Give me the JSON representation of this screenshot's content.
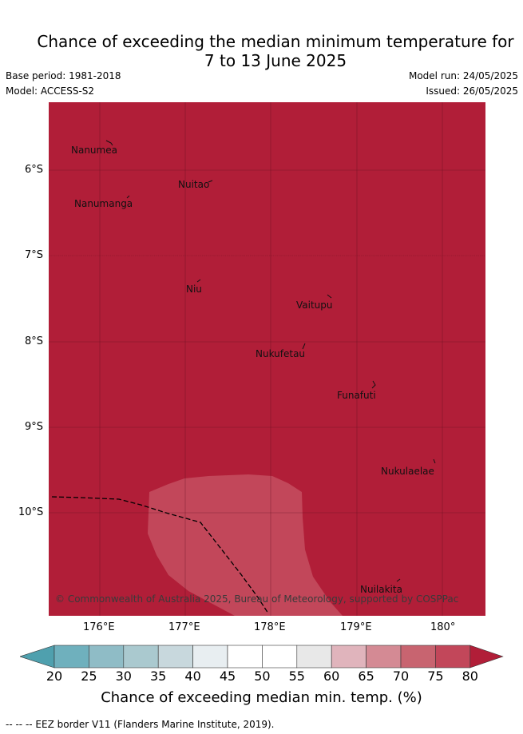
{
  "header": {
    "title_line1": "Chance of exceeding the median minimum temperature for",
    "title_line2": "7 to 13 June 2025",
    "base_period": "Base period: 1981-2018",
    "model": "Model: ACCESS-S2",
    "model_run": "Model run: 24/05/2025",
    "issued": "Issued: 26/05/2025"
  },
  "map": {
    "background_color": "#b11e38",
    "region_color": "#c2475a",
    "copyright": "© Commonwealth of Australia 2025, Bureau of Meteorology, supported by COSPPac",
    "lat_labels": [
      "6°S",
      "7°S",
      "8°S",
      "9°S",
      "10°S"
    ],
    "lon_labels": [
      "176°E",
      "177°E",
      "178°E",
      "179°E",
      "180°"
    ],
    "places": [
      {
        "name": "Nanumea"
      },
      {
        "name": "Nuitao"
      },
      {
        "name": "Nanumanga"
      },
      {
        "name": "Niu"
      },
      {
        "name": "Vaitupu"
      },
      {
        "name": "Nukufetau"
      },
      {
        "name": "Funafuti"
      },
      {
        "name": "Nukulaelae"
      },
      {
        "name": "Nuilakita"
      }
    ]
  },
  "colorbar": {
    "title": "Chance of exceeding median min. temp. (%)",
    "ticks": [
      "20",
      "25",
      "30",
      "35",
      "40",
      "45",
      "50",
      "55",
      "60",
      "65",
      "70",
      "75",
      "80"
    ],
    "colors": [
      "#4fa0ae",
      "#6fb0bd",
      "#8fbcc6",
      "#aac9cf",
      "#c8d8dd",
      "#e8eef1",
      "#ffffff",
      "#ffffff",
      "#e8e8e8",
      "#e0b4bc",
      "#d48a94",
      "#c86470",
      "#c2475a",
      "#b11e38"
    ]
  },
  "footer": {
    "legend_text": "-- -- -- EEZ border V11 (Flanders Marine Institute, 2019)."
  }
}
